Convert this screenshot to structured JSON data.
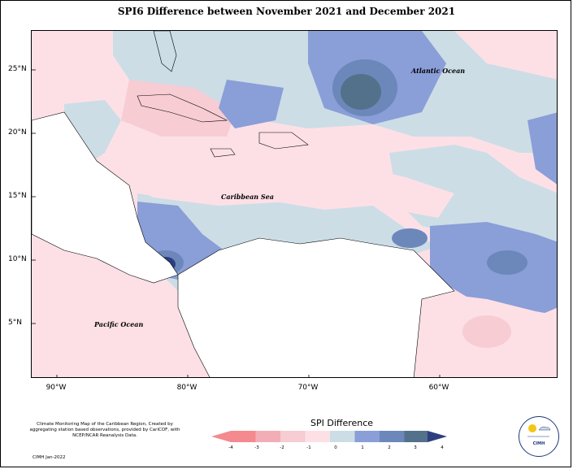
{
  "title": "SPI6 Difference between November 2021 and December 2021",
  "map": {
    "lat_labels": [
      "25°N",
      "20°N",
      "15°N",
      "10°N",
      "5°N"
    ],
    "lon_labels": [
      "90°W",
      "80°W",
      "70°W",
      "60°W"
    ],
    "oceans": {
      "atlantic": "Atlantic Ocean",
      "caribbean": "Caribbean Sea",
      "pacific": "Pacific Ocean"
    }
  },
  "legend": {
    "title": "SPI Difference",
    "ticks": [
      "-4",
      "-3",
      "-2",
      "-1",
      "0",
      "1",
      "2",
      "3",
      "4"
    ],
    "colors": [
      "#f4898f",
      "#f2aeb6",
      "#f7ccd3",
      "#fde0e6",
      "#ccdde6",
      "#8a9ed8",
      "#6c88bb",
      "#53718b",
      "#2d3e80"
    ]
  },
  "footer": {
    "description": "Climate Monitoring Map of the Caribbean Region, Created by aggregating station based observations, provided by CariCOF, with NCEP/NCAR Reanalysis Data.",
    "credit": "CIMH Jan-2022"
  },
  "logo": {
    "text": "CIMH"
  }
}
